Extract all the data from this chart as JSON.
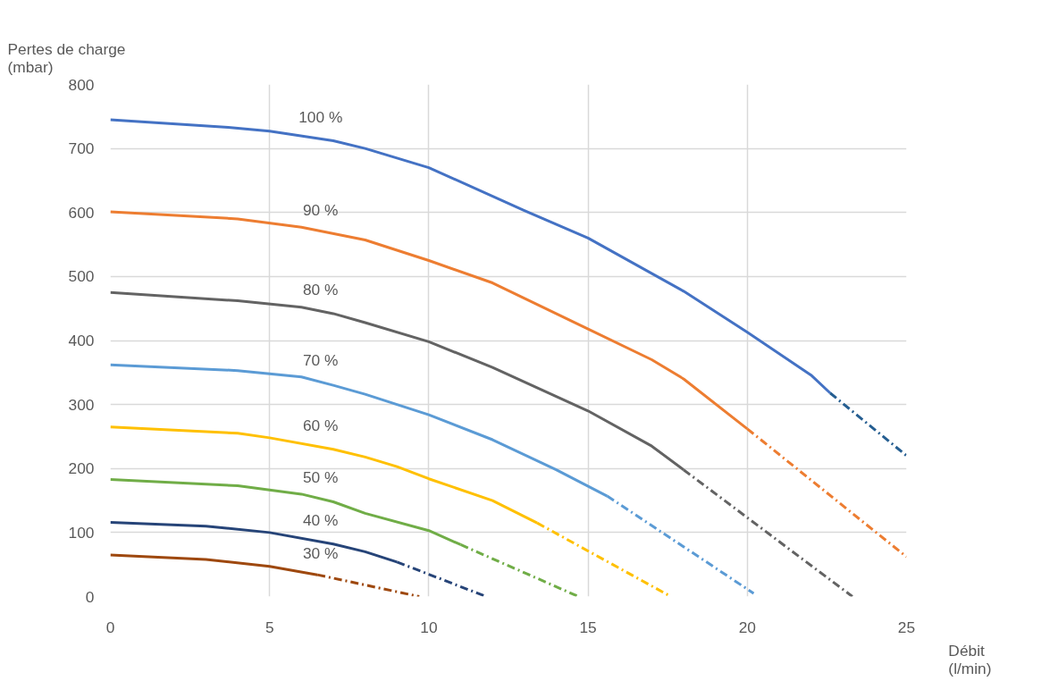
{
  "chart_data": {
    "type": "line",
    "ylabel": "Pertes de charge\n(mbar)",
    "xlabel": "Débit\n(l/min)",
    "xlim": [
      0,
      25
    ],
    "ylim": [
      0,
      800
    ],
    "xticks": [
      0,
      5,
      10,
      15,
      20,
      25
    ],
    "yticks": [
      0,
      100,
      200,
      300,
      400,
      500,
      600,
      700,
      800
    ],
    "grid": true,
    "legend": false,
    "marker": "none",
    "series": [
      {
        "name": "100 %",
        "color": "#4472c4",
        "line_style": "solid",
        "x": [
          0,
          3.7,
          5,
          7,
          8,
          10,
          13,
          15,
          18,
          20,
          22,
          22.6
        ],
        "values": [
          745,
          733,
          727,
          712,
          700,
          670,
          603,
          560,
          477,
          413,
          346,
          318
        ]
      },
      {
        "color": "#255e91",
        "line_style": "dashdot",
        "x": [
          22.6,
          25
        ],
        "values": [
          318,
          220
        ]
      },
      {
        "name": "90 %",
        "color": "#ed7d31",
        "line_style": "solid",
        "x": [
          0,
          4,
          6,
          8,
          10,
          12,
          15,
          17,
          18,
          20
        ],
        "values": [
          601,
          590,
          577,
          557,
          525,
          490,
          418,
          370,
          340,
          262
        ]
      },
      {
        "color": "#ed7d31",
        "line_style": "dashdot",
        "x": [
          20,
          25
        ],
        "values": [
          262,
          62
        ]
      },
      {
        "name": "80 %",
        "color": "#636363",
        "line_style": "solid",
        "x": [
          0,
          4,
          6,
          7,
          8,
          10,
          12,
          15,
          17,
          18
        ],
        "values": [
          475,
          462,
          452,
          442,
          428,
          398,
          358,
          290,
          235,
          198
        ]
      },
      {
        "color": "#636363",
        "line_style": "dashdot",
        "x": [
          18,
          23.3
        ],
        "values": [
          198,
          0
        ]
      },
      {
        "name": "70 %",
        "color": "#5b9bd5",
        "line_style": "solid",
        "x": [
          0,
          4,
          6,
          7,
          8,
          10,
          12,
          14,
          15.6
        ],
        "values": [
          362,
          353,
          343,
          330,
          316,
          284,
          245,
          198,
          157
        ]
      },
      {
        "color": "#5b9bd5",
        "line_style": "dashdot",
        "x": [
          15.6,
          20.2
        ],
        "values": [
          157,
          5
        ]
      },
      {
        "name": "60 %",
        "color": "#ffc000",
        "line_style": "solid",
        "x": [
          0,
          4,
          5,
          7,
          8,
          9,
          10,
          12,
          13.4
        ],
        "values": [
          265,
          255,
          248,
          230,
          218,
          203,
          184,
          150,
          115
        ]
      },
      {
        "color": "#ffc000",
        "line_style": "dashdot",
        "x": [
          13.4,
          17.6
        ],
        "values": [
          115,
          0
        ]
      },
      {
        "name": "50 %",
        "color": "#70ad47",
        "line_style": "solid",
        "x": [
          0,
          4,
          6,
          7,
          8,
          10,
          11
        ],
        "values": [
          183,
          173,
          160,
          148,
          130,
          103,
          81
        ]
      },
      {
        "color": "#70ad47",
        "line_style": "dashdot",
        "x": [
          11,
          14.7
        ],
        "values": [
          81,
          0
        ]
      },
      {
        "name": "40 %",
        "color": "#264478",
        "line_style": "solid",
        "x": [
          0,
          3,
          5,
          7,
          8,
          9
        ],
        "values": [
          116,
          110,
          100,
          82,
          70,
          54
        ]
      },
      {
        "color": "#264478",
        "line_style": "dashdot",
        "x": [
          9,
          11.8
        ],
        "values": [
          54,
          0
        ]
      },
      {
        "name": "30 %",
        "color": "#9e480e",
        "line_style": "solid",
        "x": [
          0,
          3,
          5,
          6.5
        ],
        "values": [
          65,
          58,
          47,
          34
        ]
      },
      {
        "color": "#9e480e",
        "line_style": "dashdot",
        "x": [
          6.5,
          9.7
        ],
        "values": [
          34,
          0
        ]
      }
    ]
  }
}
